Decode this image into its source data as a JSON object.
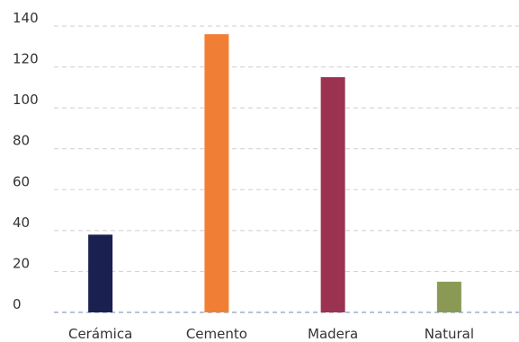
{
  "chart_data": {
    "type": "bar",
    "categories": [
      "Cerámica",
      "Cemento",
      "Madera",
      "Natural"
    ],
    "values": [
      38,
      136,
      115,
      15
    ],
    "colors": [
      "#1a2150",
      "#f07f35",
      "#9b3350",
      "#8a9a55"
    ],
    "ylim": [
      0,
      140
    ],
    "yticks": [
      0,
      20,
      40,
      60,
      80,
      100,
      120,
      140
    ],
    "grid": true,
    "legend": "none"
  }
}
